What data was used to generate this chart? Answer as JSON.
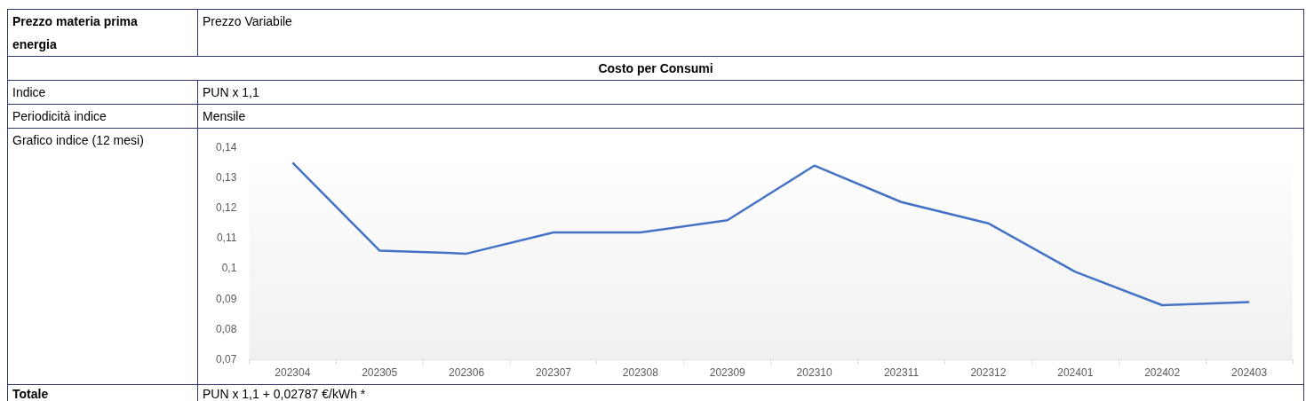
{
  "chart_data": {
    "type": "line",
    "title": "Costo per Consumi",
    "annotations": [
      "Prezzo materia prima energia",
      "Prezzo Variabile",
      "Indice",
      "PUN x 1,1",
      "Periodicità indice",
      "Mensile",
      "Grafico indice (12 mesi)",
      "Totale",
      "PUN x 1,1 + 0,02787 €/kWh *"
    ],
    "categories": [
      "202304",
      "202305",
      "202306",
      "202307",
      "202308",
      "202309",
      "202310",
      "202311",
      "202312",
      "202401",
      "202402",
      "202403"
    ],
    "series": [
      {
        "color": "#4472c4",
        "values": [
          0.135,
          0.106,
          0.105,
          0.112,
          0.112,
          0.116,
          0.134,
          0.122,
          0.115,
          0.099,
          0.088,
          0.089
        ]
      }
    ],
    "ylim": [
      0.07,
      0.14
    ],
    "yticks": [
      {
        "value": 0.07,
        "label": "0,07"
      },
      {
        "value": 0.08,
        "label": "0,08"
      },
      {
        "value": 0.09,
        "label": "0,09"
      },
      {
        "value": 0.1,
        "label": "0,1"
      },
      {
        "value": 0.11,
        "label": "0,11"
      },
      {
        "value": 0.12,
        "label": "0,12"
      },
      {
        "value": 0.13,
        "label": "0,13"
      },
      {
        "value": 0.14,
        "label": "0,14"
      }
    ],
    "grid": false,
    "legend": false,
    "marker": "none",
    "line_style": "solid"
  }
}
